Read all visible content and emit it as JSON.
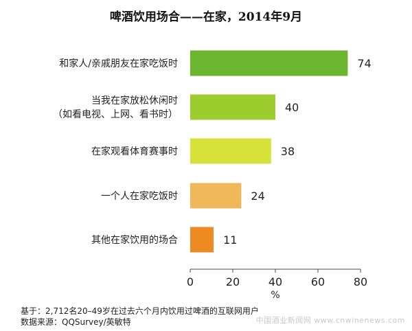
{
  "chart_data": {
    "type": "bar",
    "orientation": "horizontal",
    "title": "啤酒饮用场合——在家，2014年9月",
    "categories": [
      [
        "和家人/亲戚朋友在家吃饭时"
      ],
      [
        "当我在家放松休闲时",
        "（如看电视、上网、看书时）"
      ],
      [
        "在家观看体育赛事时"
      ],
      [
        "一个人在家吃饭时"
      ],
      [
        "其他在家饮用的场合"
      ]
    ],
    "values": [
      74,
      40,
      38,
      24,
      11
    ],
    "value_labels": [
      "74",
      "40",
      "38",
      "24",
      "11"
    ],
    "colors": [
      "#6cb52e",
      "#9ccc2e",
      "#d6e23a",
      "#f0b85a",
      "#ee8a22"
    ],
    "xlim": [
      0,
      80
    ],
    "xticks": [
      0,
      20,
      40,
      60,
      80
    ],
    "xtick_labels": [
      "0",
      "20",
      "40",
      "60",
      "80"
    ],
    "xlabel": "%",
    "grid": false,
    "legend": "none"
  },
  "footer": {
    "base": "基于：2,712名20–49岁在过去六个月内饮用过啤酒的互联网用户",
    "source": "数据来源：QQSurvey/英敏特"
  },
  "watermark": "中国酒业新闻网 www.cnwinenews.com"
}
